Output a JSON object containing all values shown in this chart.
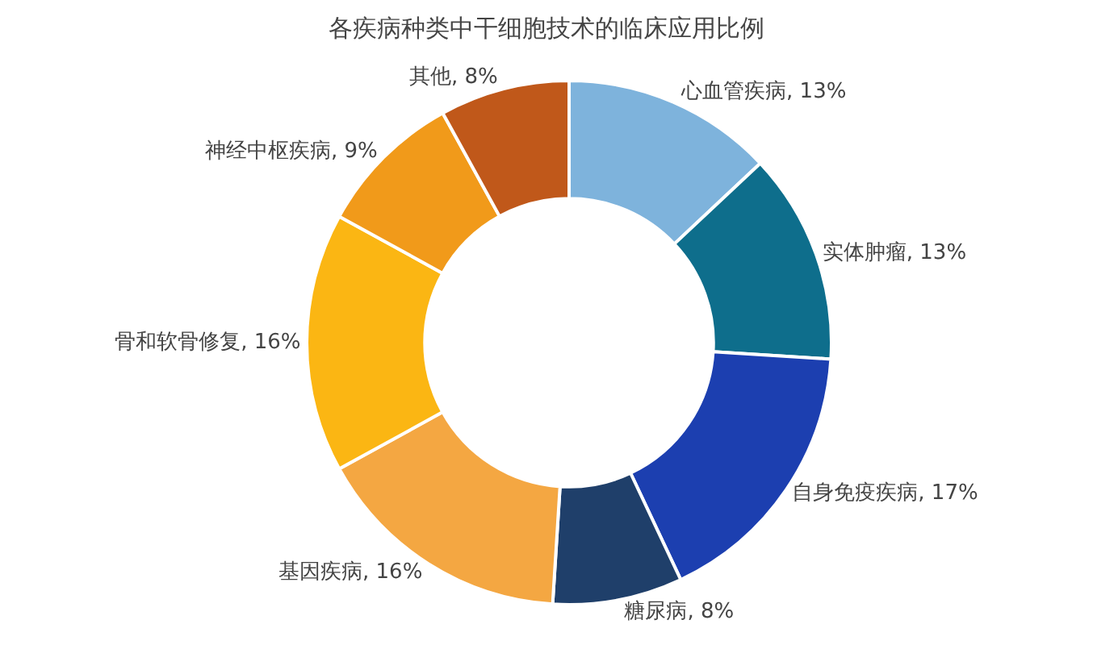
{
  "chart_data": {
    "type": "donut",
    "title": "各疾病种类中干细胞技术的临床应用比例",
    "categories": [
      "心血管疾病",
      "实体肿瘤",
      "自身免疫疾病",
      "糖尿病",
      "基因疾病",
      "骨和软骨修复",
      "神经中枢疾病",
      "其他"
    ],
    "values": [
      13,
      13,
      17,
      8,
      16,
      16,
      9,
      8
    ],
    "value_labels": [
      "13%",
      "13%",
      "17%",
      "8%",
      "16%",
      "16%",
      "9%",
      "8%"
    ],
    "colors": [
      "#7eb3dc",
      "#0e6e8c",
      "#1c3fb0",
      "#1f3f6a",
      "#f4a742",
      "#fbb613",
      "#f19a1a",
      "#c0581a"
    ],
    "legend": false
  }
}
